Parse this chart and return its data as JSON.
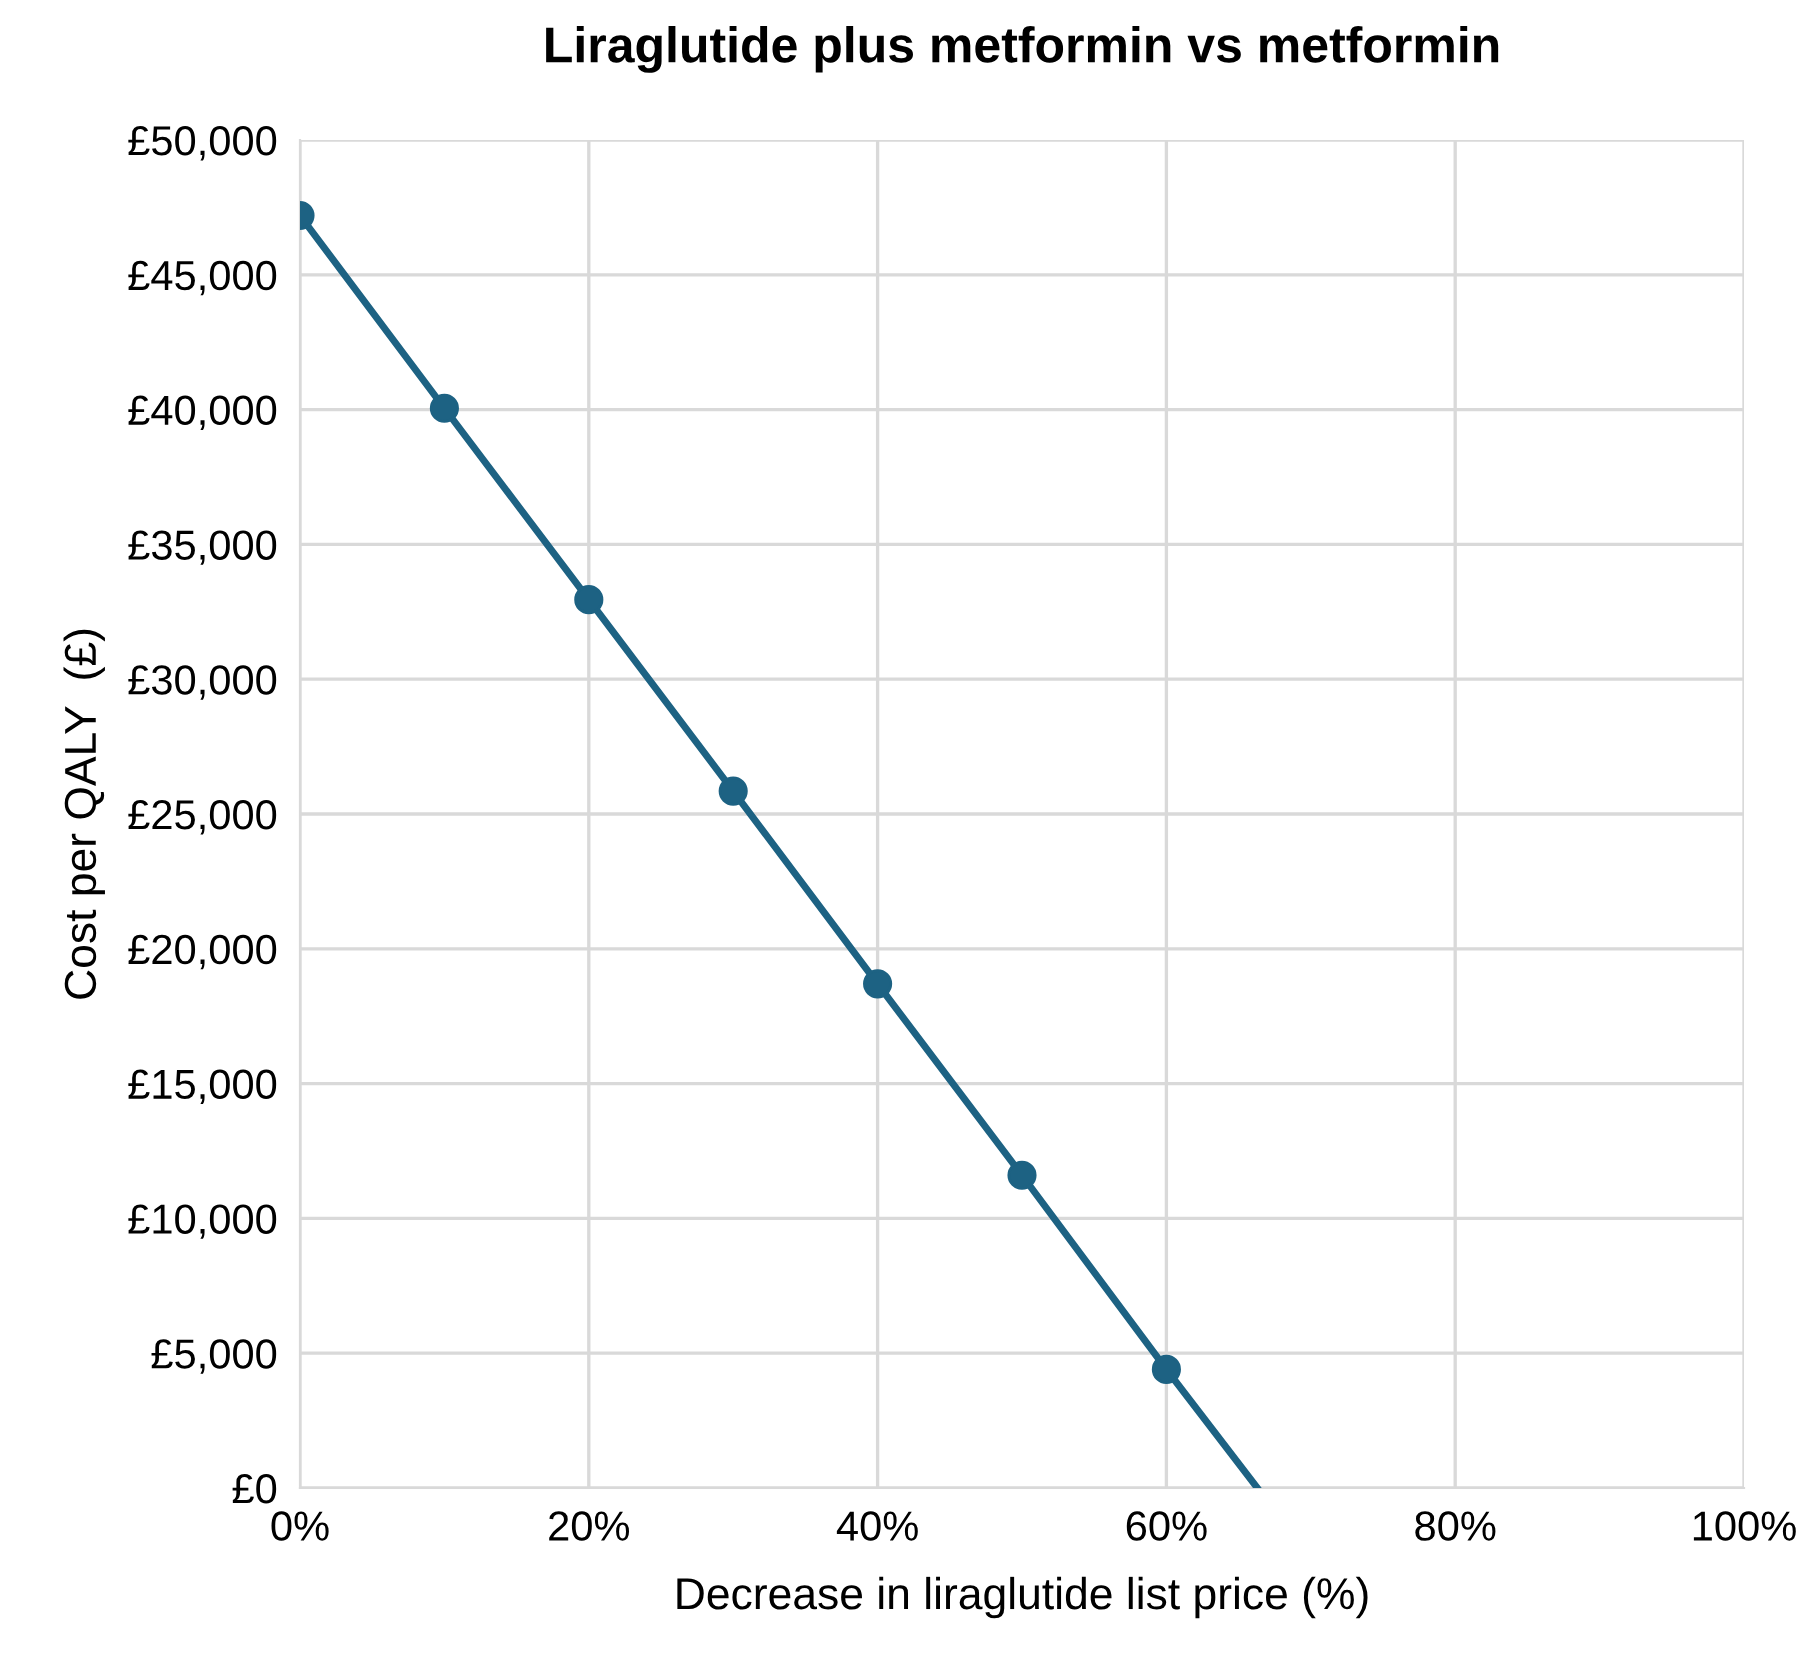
{
  "chart_data": {
    "type": "line",
    "title": "Liraglutide plus metformin vs metformin",
    "xlabel": "Decrease in liraglutide list price (%)",
    "ylabel": "Cost per QALY  (£)",
    "series": [
      {
        "color": "#1d6283",
        "marker": "none",
        "x": [
          0,
          10,
          20,
          30,
          40,
          50,
          60,
          66.3
        ],
        "values": [
          47200,
          40050,
          32950,
          25850,
          18700,
          11600,
          4400,
          0
        ]
      },
      {
        "type": "scatter",
        "color": "#1d6283",
        "marker": "circle",
        "x": [
          0,
          10,
          20,
          30,
          40,
          50,
          60
        ],
        "values": [
          47200,
          40050,
          32950,
          25850,
          18700,
          11600,
          4400
        ]
      }
    ],
    "xlim": [
      0,
      100
    ],
    "xticks": [
      {
        "value": 0,
        "label": "0%"
      },
      {
        "value": 20,
        "label": "20%"
      },
      {
        "value": 40,
        "label": "40%"
      },
      {
        "value": 60,
        "label": "60%"
      },
      {
        "value": 80,
        "label": "80%"
      },
      {
        "value": 100,
        "label": "100%"
      }
    ],
    "ylim": [
      0,
      50000
    ],
    "yticks": [
      {
        "value": 0,
        "label": "£0"
      },
      {
        "value": 5000,
        "label": "£5,000"
      },
      {
        "value": 10000,
        "label": "£10,000"
      },
      {
        "value": 15000,
        "label": "£15,000"
      },
      {
        "value": 20000,
        "label": "£20,000"
      },
      {
        "value": 25000,
        "label": "£25,000"
      },
      {
        "value": 30000,
        "label": "£30,000"
      },
      {
        "value": 35000,
        "label": "£35,000"
      },
      {
        "value": 40000,
        "label": "£40,000"
      },
      {
        "value": 45000,
        "label": "£45,000"
      },
      {
        "value": 50000,
        "label": "£50,000"
      }
    ],
    "grid": true
  }
}
